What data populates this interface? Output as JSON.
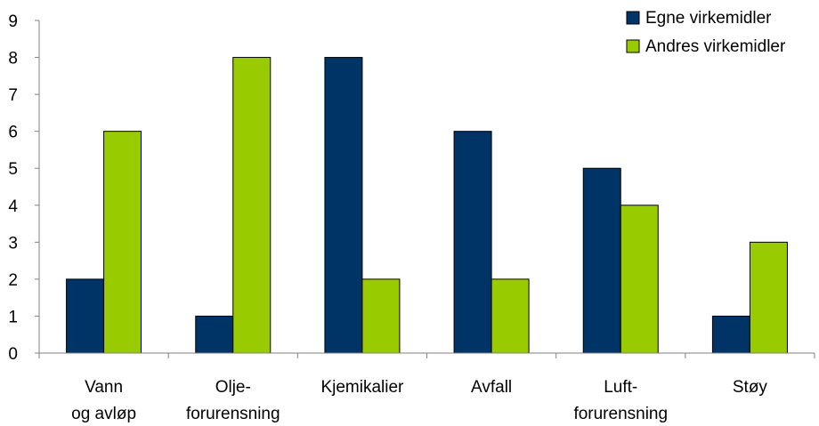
{
  "chart_data": {
    "type": "bar",
    "categories": [
      [
        "Vann",
        "og avløp"
      ],
      [
        "Olje-",
        "forurensning"
      ],
      [
        "Kjemikalier"
      ],
      [
        "Avfall"
      ],
      [
        "Luft-",
        "forurensning"
      ],
      [
        "Støy"
      ]
    ],
    "series": [
      {
        "name": "Egne virkemidler",
        "values": [
          2,
          1,
          8,
          6,
          5,
          1
        ],
        "color": "#003366"
      },
      {
        "name": "Andres virkemidler",
        "values": [
          6,
          8,
          2,
          2,
          4,
          3
        ],
        "color": "#99CC00"
      }
    ],
    "ylim": [
      0,
      9
    ],
    "yticks": [
      0,
      1,
      2,
      3,
      4,
      5,
      6,
      7,
      8,
      9
    ],
    "grid": false,
    "legend": "top-right",
    "title": "",
    "xlabel": "",
    "ylabel": ""
  }
}
